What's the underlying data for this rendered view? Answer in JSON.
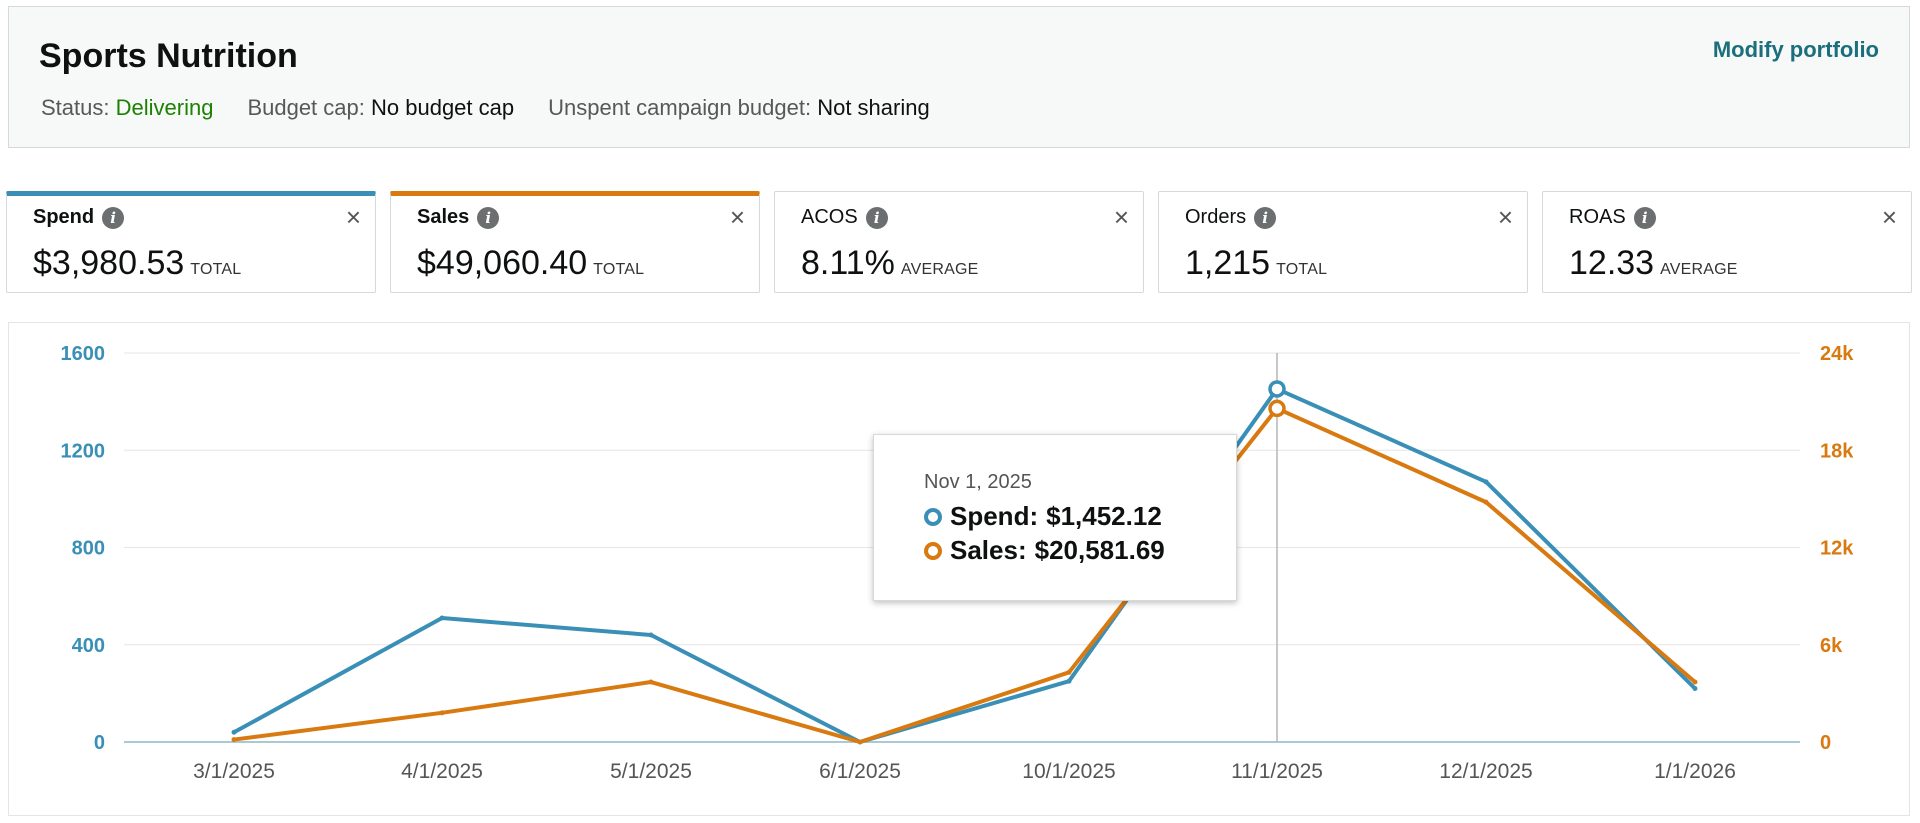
{
  "portfolio": {
    "title": "Sports Nutrition",
    "modify_label": "Modify portfolio",
    "status_label": "Status:",
    "status_value": "Delivering",
    "budget_cap_label": "Budget cap:",
    "budget_cap_value": "No budget cap",
    "unspent_label": "Unspent campaign budget:",
    "unspent_value": "Not sharing"
  },
  "metrics": [
    {
      "name": "Spend",
      "value": "$3,980.53",
      "unit": "TOTAL"
    },
    {
      "name": "Sales",
      "value": "$49,060.40",
      "unit": "TOTAL"
    },
    {
      "name": "ACOS",
      "value": "8.11%",
      "unit": "AVERAGE"
    },
    {
      "name": "Orders",
      "value": "1,215",
      "unit": "TOTAL"
    },
    {
      "name": "ROAS",
      "value": "12.33",
      "unit": "AVERAGE"
    }
  ],
  "icons": {
    "info": "info-icon",
    "close": "close-icon"
  },
  "colors": {
    "spend": "#3a8fb7",
    "sales": "#d87a10",
    "delivering": "#1d8102",
    "link": "#1b6f7d"
  },
  "tooltip": {
    "date": "Nov 1, 2025",
    "spend_label": "Spend:",
    "spend_value": "$1,452.12",
    "sales_label": "Sales:",
    "sales_value": "$20,581.69"
  },
  "chart_data": {
    "type": "line",
    "categories": [
      "3/1/2025",
      "4/1/2025",
      "5/1/2025",
      "6/1/2025",
      "10/1/2025",
      "11/1/2025",
      "12/1/2025",
      "1/1/2026"
    ],
    "series": [
      {
        "name": "Spend",
        "axis": "left",
        "values": [
          40,
          510,
          440,
          0,
          250,
          1452.12,
          1070,
          220
        ]
      },
      {
        "name": "Sales",
        "axis": "right",
        "values": [
          150,
          1800,
          3700,
          0,
          4300,
          20581.69,
          14800,
          3700
        ]
      }
    ],
    "y_left": {
      "min": 0,
      "max": 1600,
      "ticks": [
        0,
        400,
        800,
        1200,
        1600
      ],
      "tick_labels": [
        "0",
        "400",
        "800",
        "1200",
        "1600"
      ]
    },
    "y_right": {
      "min": 0,
      "max": 24000,
      "ticks": [
        0,
        6000,
        12000,
        18000,
        24000
      ],
      "tick_labels": [
        "0",
        "6k",
        "12k",
        "18k",
        "24k"
      ]
    },
    "highlight_index": 5,
    "grid": true
  }
}
